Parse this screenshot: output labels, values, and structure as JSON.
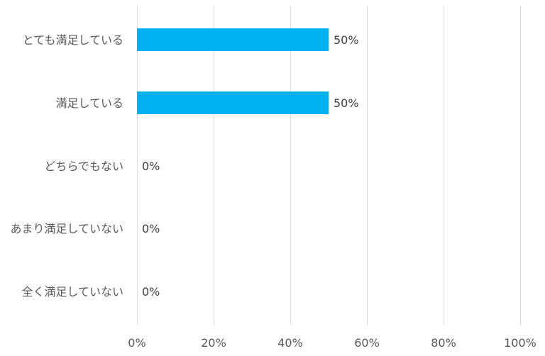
{
  "chart_data": {
    "type": "bar",
    "orientation": "horizontal",
    "title": "",
    "xlabel": "",
    "ylabel": "",
    "categories": [
      "とても満足している",
      "満足している",
      "どちらでもない",
      "あまり満足していない",
      "全く満足していない"
    ],
    "values": [
      50,
      50,
      0,
      0,
      0
    ],
    "value_labels": [
      "50%",
      "50%",
      "0%",
      "0%",
      "0%"
    ],
    "xlim": [
      0,
      100
    ],
    "x_ticks": [
      0,
      20,
      40,
      60,
      80,
      100
    ],
    "x_tick_labels": [
      "0%",
      "20%",
      "40%",
      "60%",
      "80%",
      "100%"
    ],
    "grid": true,
    "legend": "none",
    "bar_color": "#00b0f0"
  }
}
